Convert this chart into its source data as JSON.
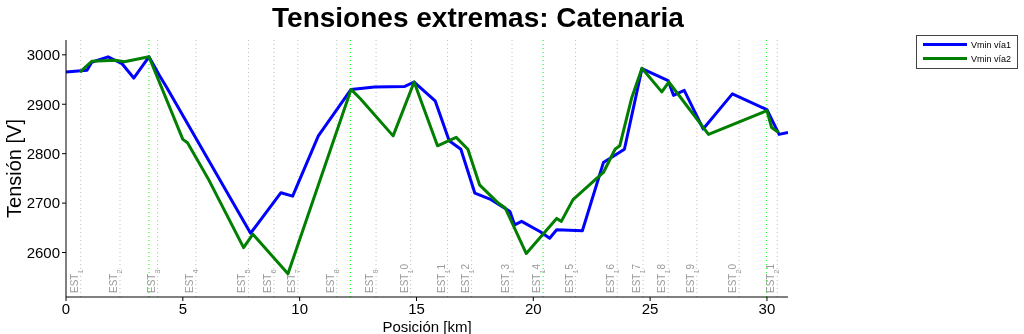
{
  "chart_data": {
    "type": "line",
    "title": "Tensiones extremas: Catenaria",
    "xlabel": "Posición [km]",
    "ylabel": "Tensión [V]",
    "xlim": [
      0,
      30.9
    ],
    "xticks": [
      0,
      5,
      10,
      15,
      20,
      25,
      30
    ],
    "ylim": [
      2510,
      3030
    ],
    "yticks": [
      2600,
      2700,
      2800,
      2900,
      3000
    ],
    "grid": false,
    "legend": "top right",
    "marker": "none",
    "line_style": "solid",
    "series": [
      {
        "name": "Vmin vía1",
        "color": "#0000ff",
        "x": [
          0,
          0.9,
          1.1,
          1.8,
          2.4,
          2.9,
          3.55,
          4.0,
          4.3,
          7.9,
          9.2,
          9.7,
          10.8,
          12.2,
          13.2,
          14.5,
          14.9,
          15.8,
          16.4,
          16.9,
          17.5,
          18.2,
          19.0,
          19.2,
          19.5,
          20.3,
          20.7,
          21.0,
          22.1,
          23.0,
          23.9,
          24.65,
          25.77,
          26.0,
          26.46,
          27.27,
          28.52,
          30.0,
          30.52,
          30.9
        ],
        "values": [
          2965,
          2969,
          2985,
          2996,
          2982,
          2953,
          2996,
          2958,
          2935,
          2639,
          2721,
          2714,
          2836,
          2930,
          2935,
          2936,
          2945,
          2907,
          2826,
          2809,
          2720,
          2707,
          2683,
          2656,
          2663,
          2642,
          2629,
          2646,
          2644,
          2782,
          2809,
          2972,
          2948,
          2918,
          2928,
          2850,
          2921,
          2889,
          2839,
          2843
        ]
      },
      {
        "name": "Vmin vía2",
        "color": "#007f00",
        "x": [
          0.6,
          1.1,
          2.1,
          2.5,
          3.55,
          5.0,
          5.2,
          6.1,
          7.6,
          8.0,
          9.5,
          12.2,
          12.6,
          14.0,
          14.9,
          15.9,
          16.7,
          17.2,
          17.7,
          18.5,
          18.8,
          19.7,
          21.0,
          21.2,
          21.7,
          23.0,
          23.5,
          23.7,
          24.2,
          24.65,
          25.5,
          25.8,
          27.5,
          30.0,
          30.2,
          30.5
        ],
        "values": [
          2965,
          2987,
          2989,
          2986,
          2996,
          2829,
          2822,
          2748,
          2610,
          2637,
          2557,
          2930,
          2911,
          2836,
          2945,
          2816,
          2833,
          2809,
          2737,
          2700,
          2690,
          2598,
          2669,
          2663,
          2707,
          2762,
          2809,
          2816,
          2911,
          2973,
          2925,
          2945,
          2839,
          2887,
          2853,
          2843
        ]
      }
    ],
    "ref_lines": [
      {
        "axis": "x",
        "value": 0.63,
        "label": "EST$_{1}$",
        "color": "#bebebe",
        "line_style": "dotted"
      },
      {
        "axis": "x",
        "value": 2.31,
        "label": "EST$_{2}$",
        "color": "#bebebe",
        "line_style": "dotted"
      },
      {
        "axis": "x",
        "value": 3.55,
        "label": null,
        "color": "#00ff00",
        "line_style": "dotted"
      },
      {
        "axis": "x",
        "value": 3.92,
        "label": "EST$_{3}$",
        "color": "#bebebe",
        "line_style": "dotted"
      },
      {
        "axis": "x",
        "value": 5.56,
        "label": "EST$_{4}$",
        "color": "#bebebe",
        "line_style": "dotted"
      },
      {
        "axis": "x",
        "value": 7.81,
        "label": "EST$_{5}$",
        "color": "#bebebe",
        "line_style": "dotted"
      },
      {
        "axis": "x",
        "value": 8.9,
        "label": "EST$_{6}$",
        "color": "#bebebe",
        "line_style": "dotted"
      },
      {
        "axis": "x",
        "value": 9.92,
        "label": "EST$_{7}$",
        "color": "#bebebe",
        "line_style": "dotted"
      },
      {
        "axis": "x",
        "value": 11.59,
        "label": "EST$_{8}$",
        "color": "#bebebe",
        "line_style": "dotted"
      },
      {
        "axis": "x",
        "value": 12.17,
        "label": null,
        "color": "#00ff00",
        "line_style": "dotted"
      },
      {
        "axis": "x",
        "value": 13.27,
        "label": "EST$_{9}$",
        "color": "#bebebe",
        "line_style": "dotted"
      },
      {
        "axis": "x",
        "value": 14.75,
        "label": "EST$_{1}$0",
        "color": "#bebebe",
        "line_style": "dotted"
      },
      {
        "axis": "x",
        "value": 16.33,
        "label": "EST$_{1}$1",
        "color": "#bebebe",
        "line_style": "dotted"
      },
      {
        "axis": "x",
        "value": 17.36,
        "label": "EST$_{1}$2",
        "color": "#bebebe",
        "line_style": "dotted"
      },
      {
        "axis": "x",
        "value": 19.09,
        "label": "EST$_{1}$3",
        "color": "#bebebe",
        "line_style": "dotted"
      },
      {
        "axis": "x",
        "value": 20.42,
        "label": "EST$_{1}$4",
        "color": "#00ff00",
        "line_style": "dotted"
      },
      {
        "axis": "x",
        "value": 21.81,
        "label": "EST$_{1}$5",
        "color": "#bebebe",
        "line_style": "dotted"
      },
      {
        "axis": "x",
        "value": 23.59,
        "label": "EST$_{1}$6",
        "color": "#bebebe",
        "line_style": "dotted"
      },
      {
        "axis": "x",
        "value": 24.7,
        "label": "EST$_{1}$7",
        "color": "#bebebe",
        "line_style": "dotted"
      },
      {
        "axis": "x",
        "value": 25.77,
        "label": "EST$_{1}$8",
        "color": "#bebebe",
        "line_style": "dotted"
      },
      {
        "axis": "x",
        "value": 27.0,
        "label": "EST$_{1}$9",
        "color": "#bebebe",
        "line_style": "dotted"
      },
      {
        "axis": "x",
        "value": 28.81,
        "label": "EST$_{2}$0",
        "color": "#bebebe",
        "line_style": "dotted"
      },
      {
        "axis": "x",
        "value": 29.99,
        "label": null,
        "color": "#00ff00",
        "line_style": "dotted"
      },
      {
        "axis": "x",
        "value": 30.44,
        "label": "EST$_{2}$1",
        "color": "#bebebe",
        "line_style": "dotted"
      }
    ]
  }
}
